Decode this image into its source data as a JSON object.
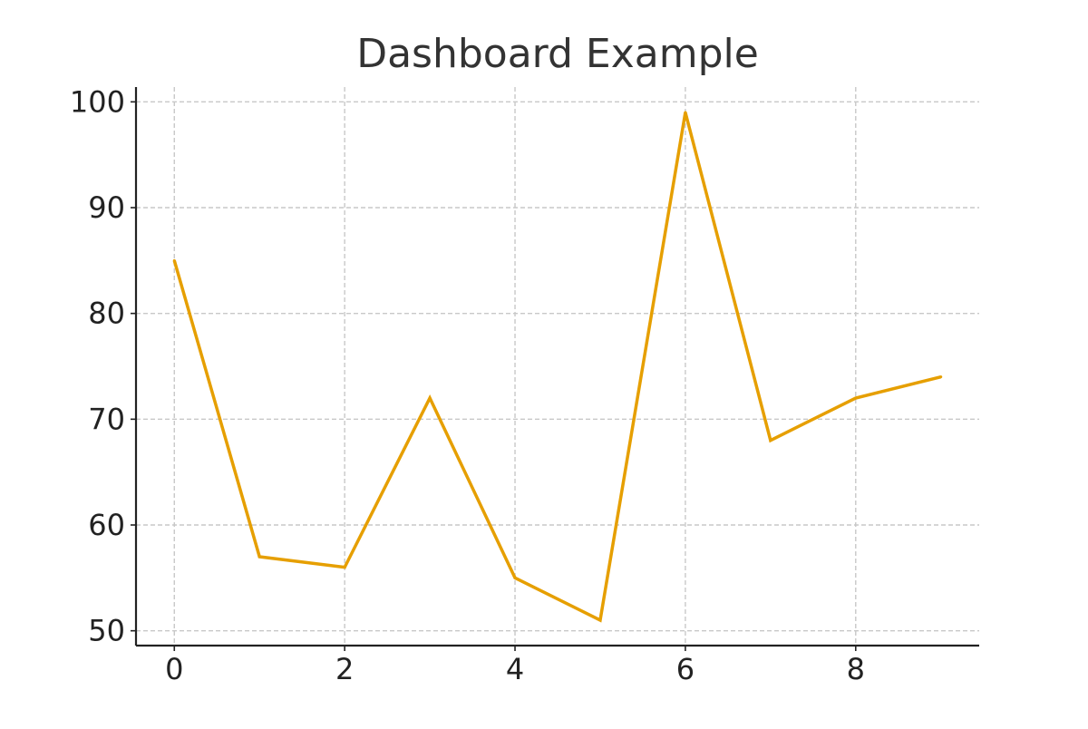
{
  "chart_data": {
    "type": "line",
    "title": "Dashboard Example",
    "xlabel": "",
    "ylabel": "",
    "x": [
      0,
      1,
      2,
      3,
      4,
      5,
      6,
      7,
      8,
      9
    ],
    "series": [
      {
        "values": [
          85,
          57,
          56,
          72,
          55,
          51,
          99,
          68,
          72,
          74
        ],
        "color": "#E69F00"
      }
    ],
    "xlim": [
      -0.45,
      9.45
    ],
    "ylim": [
      48.6,
      101.4
    ],
    "x_ticks": [
      0,
      2,
      4,
      6,
      8
    ],
    "y_ticks": [
      50,
      60,
      70,
      80,
      90,
      100
    ],
    "grid": true,
    "grid_style": "dashed",
    "legend": "none",
    "spines": "left-bottom"
  }
}
